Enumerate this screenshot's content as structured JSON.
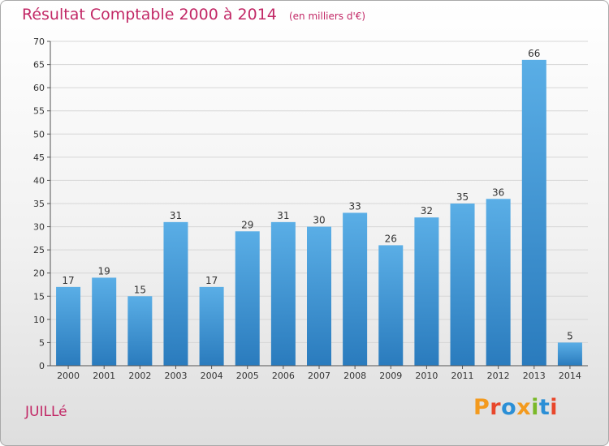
{
  "chart_data": {
    "type": "bar",
    "title": "Résultat Comptable 2000 à 2014",
    "subtitle": "(en milliers d'€)",
    "categories": [
      "2000",
      "2001",
      "2002",
      "2003",
      "2004",
      "2005",
      "2006",
      "2007",
      "2008",
      "2009",
      "2010",
      "2011",
      "2012",
      "2013",
      "2014"
    ],
    "values": [
      17,
      19,
      15,
      31,
      17,
      29,
      31,
      30,
      33,
      26,
      32,
      35,
      36,
      66,
      5
    ],
    "ylim": [
      0,
      70
    ],
    "yticks": [
      0,
      5,
      10,
      15,
      20,
      25,
      30,
      35,
      40,
      45,
      50,
      55,
      60,
      65,
      70
    ],
    "xlabel": "",
    "ylabel": "",
    "grid": true
  },
  "commune": "JUILLé",
  "brand": "Proxiti",
  "colors": {
    "title": "#c22866",
    "bar_top": "#5aaee6",
    "bar_bottom": "#2a7bbd",
    "grid": "#d6d6d6",
    "axis": "#555555",
    "brand_letters": [
      "#f39a1e",
      "#e8472b",
      "#2b8fd6",
      "#f39a1e",
      "#7ab929",
      "#2b8fd6",
      "#e8472b"
    ]
  }
}
